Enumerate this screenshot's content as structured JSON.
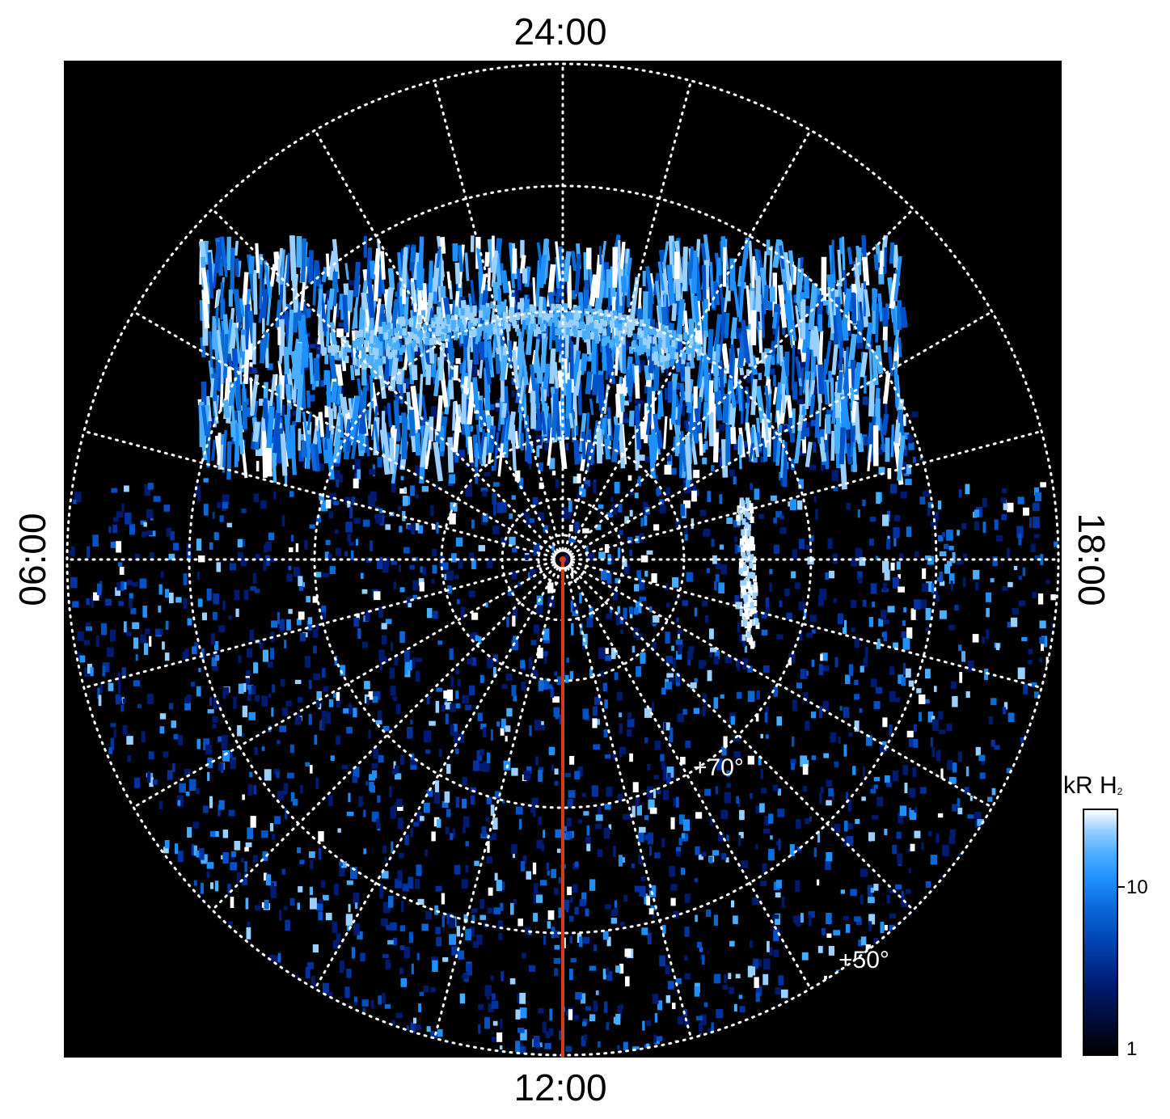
{
  "figure": {
    "local_time_labels": {
      "top": "24:00",
      "bottom": "12:00",
      "left": "06:00",
      "right": "18:00"
    },
    "latitude_labels": [
      "+70°",
      "+50°"
    ],
    "colorbar": {
      "title_main": "kR H",
      "title_sub": "2",
      "ticks": [
        "1",
        "10"
      ],
      "scale": "log",
      "colors": [
        "#000000",
        "#001a70",
        "#0a6ad8",
        "#1e90ff",
        "#ffffff"
      ]
    },
    "colors": {
      "background": "#000000",
      "grid": "#ffffff",
      "meridian_line": "#d03a1a",
      "aurora": "#1e90ff"
    }
  }
}
